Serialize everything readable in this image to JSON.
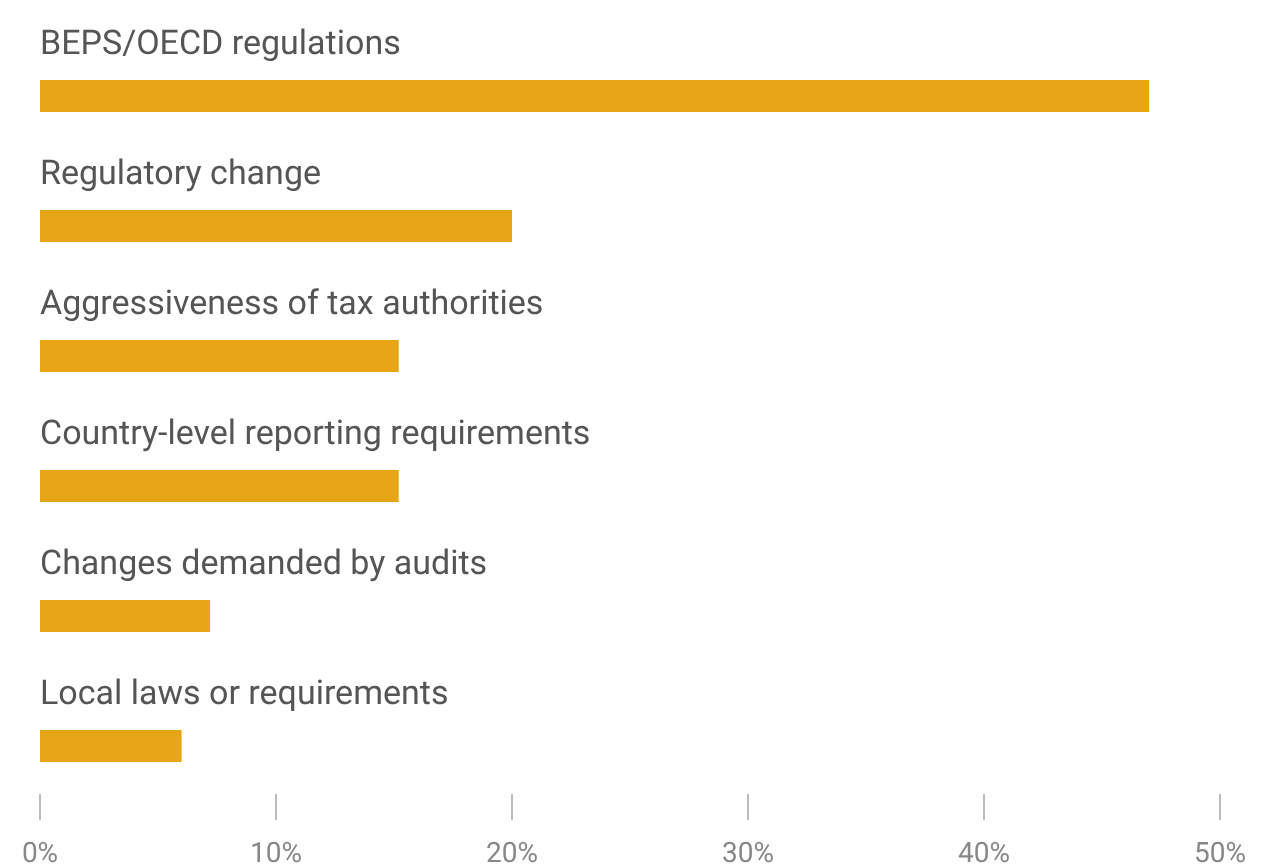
{
  "chart_data": {
    "type": "bar",
    "orientation": "horizontal",
    "categories": [
      "BEPS/OECD regulations",
      "Regulatory change",
      "Aggressiveness of tax authorities",
      "Country-level reporting requirements",
      "Changes demanded by audits",
      "Local laws or requirements"
    ],
    "values": [
      47,
      20,
      15.2,
      15.2,
      7.2,
      6
    ],
    "color": "#e8a617",
    "xlim": [
      0,
      50
    ],
    "xticks": [
      {
        "value": 0,
        "label": "0%"
      },
      {
        "value": 10,
        "label": "10%"
      },
      {
        "value": 20,
        "label": "20%"
      },
      {
        "value": 30,
        "label": "30%"
      },
      {
        "value": 40,
        "label": "40%"
      },
      {
        "value": 50,
        "label": "50%"
      }
    ],
    "grid": false
  }
}
